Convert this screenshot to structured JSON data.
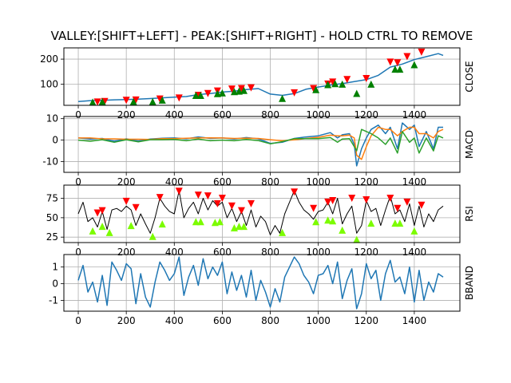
{
  "title": "VALLEY:[SHIFT+LEFT] - PEAK:[SHIFT+RIGHT] - HOLD CTRL TO REMOVE",
  "colors": {
    "series_blue": "#1f77b4",
    "macd_orange": "#ff7f0e",
    "macd_green": "#2ca02c",
    "peak_marker": "#ff0000",
    "valley_marker_close": "#008000",
    "valley_marker_rsi": "#7cfc00",
    "rsi_line": "#000000",
    "grid": "#b0b0b0"
  },
  "chart_data": [
    {
      "type": "line",
      "ylabel": "CLOSE",
      "xlim": [
        -60,
        1590
      ],
      "ylim": [
        15,
        245
      ],
      "xticks": [
        0,
        200,
        400,
        600,
        800,
        1000,
        1200,
        1400
      ],
      "yticks": [
        100,
        200
      ],
      "grid": true,
      "series": [
        {
          "x": [
            0,
            50,
            100,
            150,
            200,
            250,
            300,
            350,
            400,
            450,
            500,
            550,
            600,
            650,
            700,
            750,
            800,
            850,
            900,
            950,
            1000,
            1050,
            1100,
            1150,
            1200,
            1250,
            1300,
            1350,
            1400,
            1450,
            1500,
            1520
          ],
          "values": [
            30,
            34,
            35,
            37,
            38,
            40,
            42,
            45,
            48,
            50,
            58,
            62,
            68,
            72,
            78,
            82,
            60,
            55,
            62,
            80,
            88,
            96,
            102,
            110,
            118,
            135,
            168,
            180,
            198,
            210,
            222,
            215
          ]
        }
      ],
      "peaks": {
        "x": [
          80,
          110,
          200,
          240,
          340,
          420,
          500,
          540,
          580,
          640,
          680,
          720,
          900,
          980,
          1040,
          1060,
          1120,
          1200,
          1300,
          1330,
          1370,
          1430
        ],
        "values": [
          28,
          30,
          35,
          36,
          40,
          44,
          55,
          62,
          72,
          80,
          82,
          85,
          65,
          82,
          100,
          108,
          118,
          122,
          188,
          185,
          210,
          228
        ]
      },
      "valleys": {
        "x": [
          60,
          100,
          230,
          310,
          350,
          490,
          510,
          580,
          600,
          650,
          670,
          690,
          850,
          990,
          1040,
          1070,
          1100,
          1160,
          1220,
          1320,
          1340,
          1400
        ],
        "values": [
          28,
          30,
          30,
          30,
          36,
          55,
          55,
          62,
          65,
          70,
          72,
          75,
          43,
          78,
          98,
          102,
          100,
          63,
          100,
          160,
          160,
          178
        ]
      }
    },
    {
      "type": "line",
      "ylabel": "MACD",
      "xlim": [
        -60,
        1590
      ],
      "ylim": [
        -15,
        11
      ],
      "xticks": [
        0,
        200,
        400,
        600,
        800,
        1000,
        1200,
        1400
      ],
      "yticks": [
        -10,
        0,
        10
      ],
      "grid": true,
      "series": [
        {
          "x": [
            0,
            50,
            100,
            150,
            200,
            250,
            300,
            350,
            400,
            450,
            500,
            550,
            600,
            650,
            700,
            750,
            800,
            850,
            900,
            950,
            1000,
            1050,
            1080,
            1100,
            1130,
            1150,
            1160,
            1180,
            1200,
            1220,
            1250,
            1280,
            1300,
            1330,
            1350,
            1380,
            1400,
            1420,
            1450,
            1480,
            1500,
            1520
          ],
          "values": [
            1,
            0.5,
            0.8,
            -0.5,
            0.6,
            -0.4,
            0.5,
            0.9,
            1,
            0.6,
            1.5,
            0.8,
            1,
            0.5,
            1.2,
            0.6,
            -1.5,
            -1,
            0.8,
            1.5,
            2,
            3.5,
            1,
            2.5,
            3,
            -2,
            -12,
            -4,
            1,
            5,
            7,
            3,
            6,
            -4,
            8,
            5,
            7,
            -3,
            4,
            -4,
            6,
            6
          ]
        },
        {
          "x": [
            0,
            50,
            100,
            150,
            200,
            250,
            300,
            350,
            400,
            450,
            500,
            550,
            600,
            650,
            700,
            750,
            800,
            850,
            900,
            950,
            1000,
            1050,
            1080,
            1100,
            1130,
            1150,
            1160,
            1180,
            1200,
            1220,
            1250,
            1280,
            1300,
            1330,
            1350,
            1380,
            1400,
            1420,
            1450,
            1480,
            1500,
            1520
          ],
          "values": [
            1,
            1,
            0.6,
            0.6,
            0.4,
            0.4,
            0.3,
            0.7,
            0.7,
            0.9,
            1,
            1.1,
            1,
            0.8,
            0.9,
            0.8,
            0.2,
            -0.3,
            0.1,
            0.8,
            1.3,
            2.3,
            2,
            2,
            2.3,
            1,
            -7,
            -9,
            -3,
            2,
            6,
            5,
            5,
            2,
            4,
            6,
            6,
            3,
            3,
            1,
            4,
            5
          ]
        },
        {
          "x": [
            0,
            50,
            100,
            150,
            200,
            250,
            300,
            350,
            400,
            450,
            500,
            550,
            600,
            650,
            700,
            750,
            800,
            850,
            900,
            950,
            1000,
            1050,
            1080,
            1100,
            1130,
            1150,
            1160,
            1180,
            1200,
            1220,
            1250,
            1280,
            1300,
            1330,
            1350,
            1380,
            1400,
            1420,
            1450,
            1480,
            1500,
            1520
          ],
          "values": [
            0,
            -0.5,
            0.2,
            -1,
            0.2,
            -0.8,
            0.2,
            0.2,
            0.3,
            -0.3,
            0.5,
            -0.3,
            0,
            -0.3,
            0.3,
            -0.2,
            -1.7,
            -0.7,
            0.7,
            0.7,
            0.7,
            1.2,
            -1,
            0.5,
            0.7,
            -3,
            -5,
            5,
            4,
            3,
            1,
            -2,
            1,
            -6,
            4,
            -1,
            1,
            -6,
            1,
            -5,
            2,
            1
          ]
        }
      ]
    },
    {
      "type": "line",
      "ylabel": "RSI",
      "xlim": [
        -60,
        1590
      ],
      "ylim": [
        18,
        92
      ],
      "xticks": [
        0,
        200,
        400,
        600,
        800,
        1000,
        1200,
        1400
      ],
      "yticks": [
        25,
        50,
        75
      ],
      "grid": true,
      "series": [
        {
          "x": [
            0,
            20,
            40,
            60,
            80,
            100,
            120,
            140,
            160,
            180,
            200,
            220,
            240,
            260,
            280,
            300,
            320,
            340,
            360,
            380,
            400,
            420,
            440,
            460,
            480,
            500,
            520,
            540,
            560,
            580,
            600,
            620,
            640,
            660,
            680,
            700,
            720,
            740,
            760,
            780,
            800,
            820,
            840,
            860,
            880,
            900,
            920,
            940,
            960,
            980,
            1000,
            1020,
            1040,
            1060,
            1080,
            1100,
            1120,
            1140,
            1160,
            1180,
            1200,
            1220,
            1240,
            1260,
            1280,
            1300,
            1320,
            1340,
            1360,
            1380,
            1400,
            1420,
            1440,
            1460,
            1480,
            1500,
            1520
          ],
          "values": [
            55,
            70,
            45,
            50,
            38,
            58,
            35,
            60,
            62,
            58,
            65,
            60,
            40,
            55,
            42,
            30,
            50,
            75,
            65,
            58,
            55,
            85,
            50,
            62,
            70,
            55,
            75,
            60,
            72,
            65,
            70,
            50,
            62,
            45,
            58,
            40,
            60,
            38,
            52,
            45,
            28,
            40,
            30,
            55,
            70,
            85,
            70,
            60,
            55,
            48,
            58,
            60,
            70,
            55,
            75,
            42,
            55,
            65,
            30,
            40,
            72,
            58,
            62,
            40,
            60,
            78,
            55,
            60,
            45,
            68,
            40,
            65,
            38,
            55,
            45,
            60,
            65
          ]
        }
      ],
      "peaks": {
        "x": [
          80,
          100,
          200,
          240,
          340,
          420,
          500,
          540,
          580,
          600,
          640,
          680,
          720,
          900,
          980,
          1040,
          1060,
          1140,
          1200,
          1300,
          1330,
          1370,
          1430
        ],
        "values": [
          56,
          59,
          71,
          63,
          76,
          84,
          79,
          78,
          68,
          75,
          65,
          59,
          68,
          83,
          62,
          70,
          72,
          75,
          73,
          75,
          62,
          70,
          66
        ]
      },
      "valleys": {
        "x": [
          60,
          100,
          130,
          220,
          310,
          350,
          490,
          510,
          570,
          590,
          650,
          670,
          690,
          850,
          990,
          1040,
          1060,
          1100,
          1160,
          1220,
          1320,
          1340,
          1400
        ],
        "values": [
          33,
          39,
          31,
          40,
          26,
          42,
          45,
          45,
          44,
          45,
          37,
          39,
          39,
          31,
          45,
          47,
          46,
          34,
          22,
          43,
          43,
          43,
          33
        ]
      }
    },
    {
      "type": "line",
      "ylabel": "BBAND",
      "xlim": [
        -60,
        1590
      ],
      "ylim": [
        -1.65,
        1.75
      ],
      "xticks": [
        0,
        200,
        400,
        600,
        800,
        1000,
        1200,
        1400
      ],
      "yticks": [
        -1,
        0,
        1
      ],
      "xticklabels": [
        "0",
        "200",
        "400",
        "600",
        "800",
        "1000",
        "1200",
        "1400"
      ],
      "grid": true,
      "series": [
        {
          "x": [
            0,
            20,
            40,
            60,
            80,
            100,
            120,
            140,
            160,
            180,
            200,
            220,
            240,
            260,
            280,
            300,
            320,
            340,
            360,
            380,
            400,
            420,
            440,
            460,
            480,
            500,
            520,
            540,
            560,
            580,
            600,
            620,
            640,
            660,
            680,
            700,
            720,
            740,
            760,
            780,
            800,
            820,
            840,
            860,
            880,
            900,
            920,
            940,
            960,
            980,
            1000,
            1020,
            1040,
            1060,
            1080,
            1100,
            1120,
            1140,
            1160,
            1180,
            1200,
            1220,
            1240,
            1260,
            1280,
            1300,
            1320,
            1340,
            1360,
            1380,
            1400,
            1420,
            1440,
            1460,
            1480,
            1500,
            1520
          ],
          "values": [
            0.2,
            1.1,
            -0.5,
            0.1,
            -1.1,
            0.5,
            -1.3,
            1.3,
            0.8,
            0.2,
            1.2,
            0.9,
            -1.2,
            0.6,
            -0.8,
            -1.4,
            0.1,
            1.3,
            0.8,
            0.2,
            0.6,
            1.6,
            -0.7,
            0.4,
            1.1,
            -0.1,
            1.5,
            0.3,
            1,
            0.5,
            1.3,
            -0.6,
            0.7,
            -0.4,
            0.5,
            -0.8,
            0.8,
            -1,
            0.2,
            -0.5,
            -1.4,
            -0.3,
            -1.1,
            0.4,
            1,
            1.6,
            1.2,
            0.5,
            0.1,
            -0.6,
            0.5,
            0.6,
            1.1,
            0,
            1.3,
            -0.9,
            0.2,
            0.9,
            -1.5,
            -0.6,
            1.2,
            0.3,
            0.8,
            -1,
            0.6,
            1.4,
            0.1,
            0.4,
            -0.6,
            1,
            -1.1,
            0.8,
            -1,
            0.1,
            -0.5,
            0.6,
            0.4
          ]
        }
      ]
    }
  ]
}
